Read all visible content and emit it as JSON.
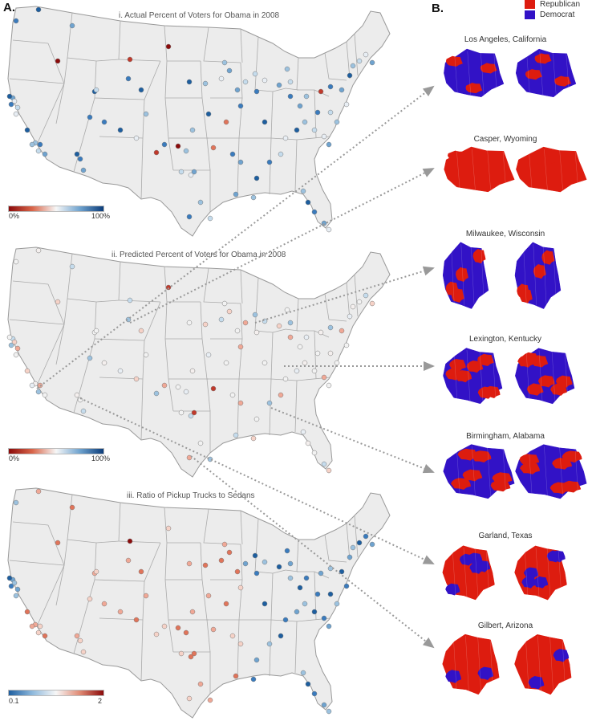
{
  "panel_a_label": "A.",
  "panel_b_label": "B.",
  "maps": [
    {
      "title": "i. Actual  Percent of Voters for Obama in 2008",
      "scale_min": "0%",
      "scale_max": "100%",
      "scale": "red-white-blue"
    },
    {
      "title": "ii. Predicted Percent of Voters for Obama in 2008",
      "scale_min": "0%",
      "scale_max": "100%",
      "scale": "red-white-blue"
    },
    {
      "title": "iii. Ratio of Pickup Trucks to Sedans",
      "scale_min": "0.1",
      "scale_max": "2",
      "scale": "blue-white-red"
    }
  ],
  "legend": {
    "republican": "Republican",
    "democrat": "Democrat"
  },
  "colors": {
    "republican": "#dd1c0f",
    "democrat": "#3212c6",
    "land": "#ececec",
    "border": "#999999",
    "arrow": "#999999"
  },
  "cities": [
    {
      "name": "Los Angeles, California",
      "majority": "democrat"
    },
    {
      "name": "Casper, Wyoming",
      "majority": "republican"
    },
    {
      "name": "Milwaukee, Wisconsin",
      "majority": "democrat"
    },
    {
      "name": "Lexington, Kentucky",
      "majority": "mixed"
    },
    {
      "name": "Birmingham, Alabama",
      "majority": "mixed"
    },
    {
      "name": "Garland, Texas",
      "majority": "republican"
    },
    {
      "name": "Gilbert, Arizona",
      "majority": "republican"
    }
  ]
}
